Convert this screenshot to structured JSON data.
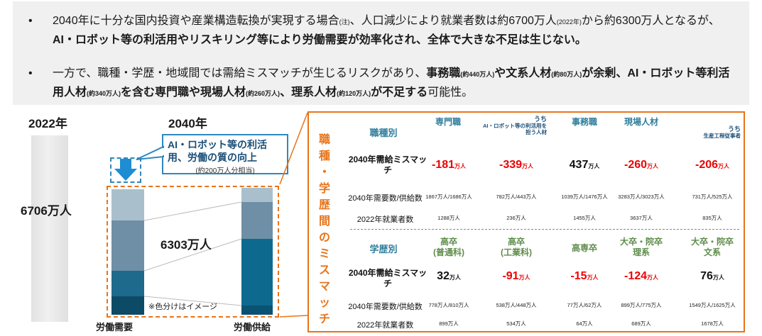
{
  "summary": {
    "bullet1": {
      "marker": "•",
      "p1": "2040年に十分な国内投資や産業構造転換が実現する場合",
      "p1_note": "(注)",
      "p2": "、人口減少により就業者数は約6700万人",
      "p2_note": "(2022年)",
      "p3": "から約6300万人となるが、",
      "p4_bold": "AI・ロボット等の利活用やリスキリング等により労働需要が効率化され、全体で大きな不足は生じない。"
    },
    "bullet2": {
      "marker": "•",
      "p1": "一方で、職種・学歴・地域間では需給ミスマッチが生じるリスクがあり、",
      "p2_bold": "事務職",
      "p2_note": "(約440万人)",
      "p3_bold": "や文系人材",
      "p3_note": "(約80万人)",
      "p4_bold": "が余剰、",
      "p5_bold": "AI・ロボット等利活用人材",
      "p5_note": "(約340万人)",
      "p6_bold": "を含む専門職や現場人材",
      "p6_note": "(約260万人)",
      "p7_bold": "、理系人材",
      "p7_note": "(約120万人)",
      "p8_bold": "が不足する",
      "p9": "可能性。"
    }
  },
  "left_chart": {
    "year_2022": "2022年",
    "year_2040": "2040年",
    "total_2022": "6706万人",
    "total_2040": "6303万人",
    "callout_title": "AI・ロボット等の利活用、労働の質の向上",
    "callout_sub": "(約200万人分相当)",
    "note": "※色分けはイメージ",
    "label_demand": "労働需要",
    "label_supply": "労働供給",
    "colors": {
      "seg1": "#a9bfcc",
      "seg2": "#6e8fa6",
      "seg3": "#1d6a8c",
      "seg4": "#0d4a66",
      "supply3": "#0d6a8e",
      "supply4": "#0a5273",
      "arrow": "#1f8dd2"
    }
  },
  "mismatch": {
    "vertical_title": "職種・学歴間のミスマッチ",
    "occupation": {
      "header": "職種別",
      "columns": [
        {
          "name": "専門職",
          "sub": ""
        },
        {
          "name": "うち",
          "sub": "AI・ロボット等の利活用を担う人材"
        },
        {
          "name": "事務職",
          "sub": ""
        },
        {
          "name": "現場人材",
          "sub": ""
        },
        {
          "name": "うち",
          "sub": "生産工程従事者"
        }
      ],
      "row_mismatch_label": "2040年需給ミスマッチ",
      "mismatch": [
        "-181",
        "-339",
        "437",
        "-260",
        "-206"
      ],
      "unit": "万人",
      "row_supply_label": "2040年需要数/供給数",
      "supply": [
        "1867万人/1686万人",
        "782万人/443万人",
        "1039万人/1476万人",
        "3283万人/3023万人",
        "731万人/525万人"
      ],
      "row_employed_label": "2022年就業者数",
      "employed": [
        "1288万人",
        "236万人",
        "1455万人",
        "3637万人",
        "835万人"
      ]
    },
    "education": {
      "header": "学歴別",
      "columns": [
        "高卒(普通科)",
        "高卒(工業科)",
        "高専卒",
        "大卒・院卒理系",
        "大卒・院卒文系"
      ],
      "row_mismatch_label": "2040年需給ミスマッチ",
      "mismatch": [
        "32",
        "-91",
        "-15",
        "-124",
        "76"
      ],
      "unit": "万人",
      "row_supply_label": "2040年需要数/供給数",
      "supply": [
        "778万人/810万人",
        "538万人/448万人",
        "77万人/62万人",
        "899万人/775万人",
        "1549万人/1625万人"
      ],
      "row_employed_label": "2022年就業者数",
      "employed": [
        "899万人",
        "534万人",
        "64万人",
        "689万人",
        "1678万人"
      ]
    }
  }
}
